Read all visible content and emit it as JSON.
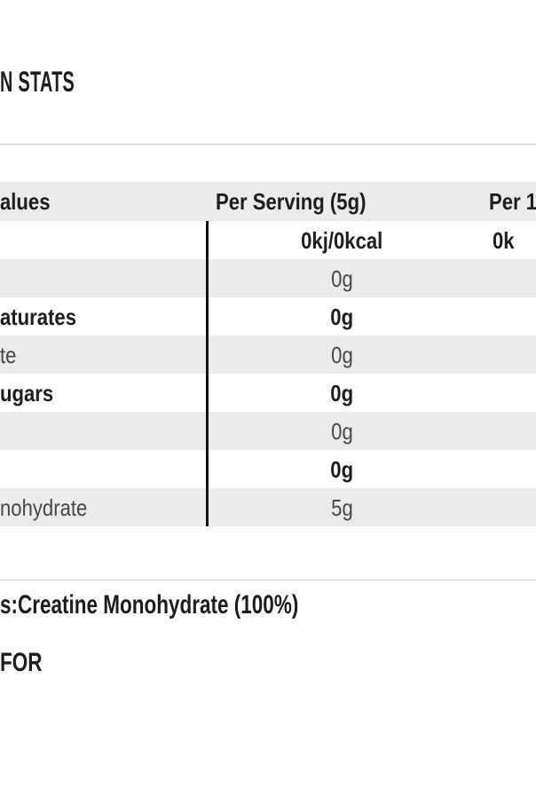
{
  "heading": "N STATS",
  "nutrition_table": {
    "columns": {
      "values": "alues",
      "per_serving": "Per Serving (5g)",
      "per_100": "Per 1"
    },
    "rows": [
      {
        "label": "",
        "per_serving": "0kj/0kcal",
        "per_100": "0k"
      },
      {
        "label": "",
        "per_serving": "0g",
        "per_100": ""
      },
      {
        "label": "aturates",
        "per_serving": "0g",
        "per_100": ""
      },
      {
        "label": "te",
        "per_serving": "0g",
        "per_100": ""
      },
      {
        "label": "ugars",
        "per_serving": "0g",
        "per_100": ""
      },
      {
        "label": "",
        "per_serving": "0g",
        "per_100": ""
      },
      {
        "label": "",
        "per_serving": "0g",
        "per_100": ""
      },
      {
        "label": "nohydrate",
        "per_serving": "5g",
        "per_100": ""
      }
    ]
  },
  "ingredients_text": "s:Creatine Monohydrate (100%)",
  "suitable_for_text": "FOR",
  "colors": {
    "row_shade": "#ebebe9",
    "text_dark": "#1d1d1b",
    "text_light": "#474747",
    "divider": "#d0d0ce",
    "column_rule": "#141414"
  }
}
